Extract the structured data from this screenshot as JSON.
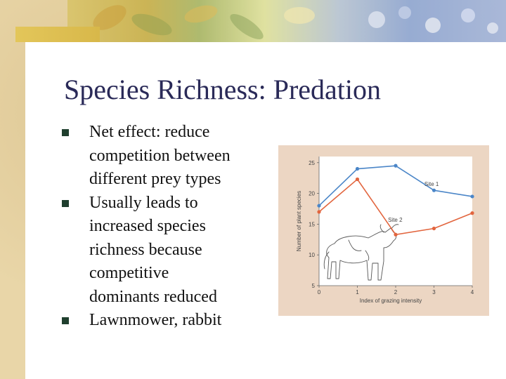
{
  "slide": {
    "title": "Species Richness: Predation",
    "bullets": [
      {
        "lines": [
          "Net effect: reduce",
          "competition between",
          "different prey types"
        ]
      },
      {
        "lines": [
          "Usually leads to",
          "increased species",
          "richness because",
          "competitive",
          "dominants reduced"
        ]
      },
      {
        "lines": [
          "Lawnmower, rabbit"
        ]
      }
    ]
  },
  "colors": {
    "title": "#2a2a58",
    "bullet": "#1f3f2e",
    "site1": "#4b86c8",
    "site2": "#e2653e",
    "figure_bg": "#ecd6c3"
  },
  "chart_data": {
    "type": "line",
    "xlabel": "Index of grazing intensity",
    "ylabel": "Number of plant species",
    "xlim": [
      0,
      4
    ],
    "ylim": [
      5,
      26
    ],
    "x_ticks": [
      0,
      1,
      2,
      3,
      4
    ],
    "y_ticks": [
      5,
      10,
      15,
      20,
      25
    ],
    "series": [
      {
        "name": "Site 1",
        "x": [
          0,
          1,
          2,
          3,
          4
        ],
        "values": [
          18,
          24,
          24.5,
          20.5,
          19.5
        ]
      },
      {
        "name": "Site 2",
        "x": [
          0,
          1,
          2,
          3,
          4
        ],
        "values": [
          17,
          22.3,
          13.3,
          14.3,
          16.8
        ]
      }
    ],
    "illustration": "cow-icon"
  }
}
